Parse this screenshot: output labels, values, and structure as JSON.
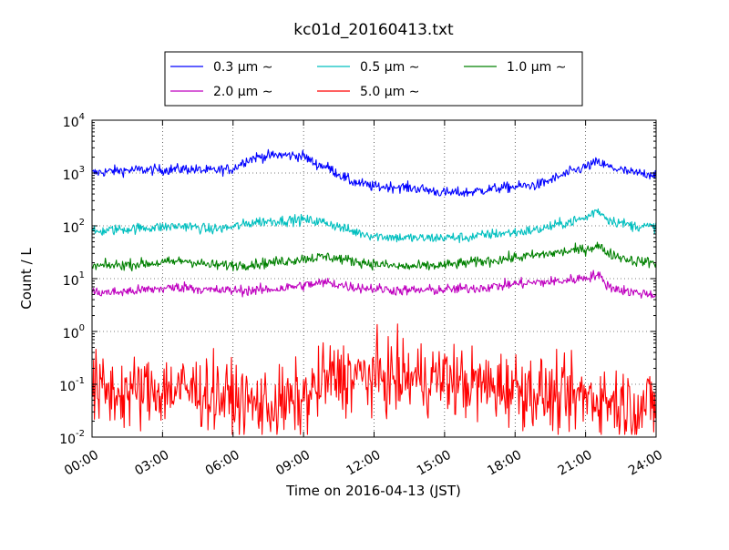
{
  "chart_data": {
    "type": "line",
    "title": "kc01d_20160413.txt",
    "xlabel": "Time on 2016-04-13 (JST)",
    "ylabel": "Count / L",
    "y_scale": "log",
    "ylim": [
      0.01,
      10000
    ],
    "xlim": [
      "00:00",
      "24:00"
    ],
    "grid": true,
    "grid_style": "dotted",
    "legend_position": "top, above plot",
    "legend_columns": 3,
    "x_ticks": [
      "00:00",
      "03:00",
      "06:00",
      "09:00",
      "12:00",
      "15:00",
      "18:00",
      "21:00",
      "24:00"
    ],
    "y_ticks": [
      {
        "value": 0.01,
        "base": "10",
        "exp": "-2"
      },
      {
        "value": 0.1,
        "base": "10",
        "exp": "-1"
      },
      {
        "value": 1,
        "base": "10",
        "exp": "0"
      },
      {
        "value": 10,
        "base": "10",
        "exp": "1"
      },
      {
        "value": 100,
        "base": "10",
        "exp": "2"
      },
      {
        "value": 1000,
        "base": "10",
        "exp": "3"
      },
      {
        "value": 10000,
        "base": "10",
        "exp": "4"
      }
    ],
    "series": [
      {
        "name": "0.3 μm ∼",
        "color": "#0000ff",
        "noise": 0.05,
        "x": [
          "00:00",
          "01:00",
          "02:00",
          "03:00",
          "04:00",
          "05:00",
          "06:00",
          "06:30",
          "07:00",
          "08:00",
          "09:00",
          "09:30",
          "10:00",
          "11:00",
          "12:00",
          "13:00",
          "14:00",
          "15:00",
          "16:00",
          "17:00",
          "18:00",
          "19:00",
          "20:00",
          "20:30",
          "21:00",
          "21:30",
          "22:00",
          "23:00",
          "24:00"
        ],
        "values": [
          1000,
          1100,
          1150,
          1150,
          1200,
          1100,
          1200,
          1700,
          2000,
          2200,
          2100,
          1500,
          1300,
          700,
          550,
          550,
          500,
          420,
          430,
          500,
          550,
          600,
          900,
          1100,
          1300,
          1600,
          1300,
          1000,
          950
        ]
      },
      {
        "name": "0.5 μm ∼",
        "color": "#00bfbf",
        "noise": 0.05,
        "x": [
          "00:00",
          "01:00",
          "02:00",
          "03:00",
          "04:00",
          "05:00",
          "06:00",
          "07:00",
          "08:00",
          "09:00",
          "10:00",
          "11:00",
          "12:00",
          "13:00",
          "14:00",
          "15:00",
          "16:00",
          "17:00",
          "18:00",
          "19:00",
          "20:00",
          "21:00",
          "21:30",
          "22:00",
          "23:00",
          "24:00"
        ],
        "values": [
          75,
          85,
          90,
          95,
          100,
          85,
          95,
          120,
          125,
          130,
          115,
          80,
          65,
          60,
          58,
          60,
          60,
          70,
          75,
          85,
          110,
          140,
          200,
          130,
          100,
          95
        ]
      },
      {
        "name": "1.0 μm ∼",
        "color": "#008000",
        "noise": 0.05,
        "x": [
          "00:00",
          "01:00",
          "02:00",
          "03:00",
          "04:00",
          "05:00",
          "06:00",
          "07:00",
          "08:00",
          "09:00",
          "10:00",
          "11:00",
          "12:00",
          "13:00",
          "14:00",
          "15:00",
          "16:00",
          "17:00",
          "18:00",
          "19:00",
          "20:00",
          "21:00",
          "21:30",
          "22:00",
          "23:00",
          "24:00"
        ],
        "values": [
          17,
          18,
          19,
          20,
          22,
          18,
          18,
          19,
          21,
          24,
          26,
          22,
          19,
          17,
          17,
          18,
          20,
          22,
          25,
          28,
          32,
          36,
          42,
          30,
          22,
          20
        ]
      },
      {
        "name": "2.0 μm ∼",
        "color": "#bf00bf",
        "noise": 0.05,
        "x": [
          "00:00",
          "01:00",
          "02:00",
          "03:00",
          "04:00",
          "05:00",
          "06:00",
          "07:00",
          "08:00",
          "09:00",
          "10:00",
          "11:00",
          "12:00",
          "13:00",
          "14:00",
          "15:00",
          "16:00",
          "17:00",
          "18:00",
          "19:00",
          "20:00",
          "21:00",
          "21:30",
          "22:00",
          "23:00",
          "24:00"
        ],
        "values": [
          5.5,
          5.5,
          6,
          6.5,
          7,
          6,
          6,
          6,
          6.5,
          7.5,
          8.5,
          7,
          6.5,
          6,
          6,
          6.2,
          6.5,
          7,
          8,
          8.5,
          9,
          10.5,
          12,
          7,
          5.5,
          5
        ]
      },
      {
        "name": "5.0 μm ∼",
        "color": "#ff0000",
        "noise": 0.35,
        "x": [
          "00:00",
          "01:00",
          "02:00",
          "03:00",
          "04:00",
          "05:00",
          "06:00",
          "07:00",
          "08:00",
          "09:00",
          "10:00",
          "11:00",
          "12:00",
          "13:00",
          "14:00",
          "15:00",
          "16:00",
          "17:00",
          "18:00",
          "19:00",
          "20:00",
          "21:00",
          "22:00",
          "23:00",
          "24:00"
        ],
        "values": [
          0.08,
          0.07,
          0.07,
          0.08,
          0.08,
          0.07,
          0.05,
          0.04,
          0.04,
          0.05,
          0.13,
          0.14,
          0.14,
          0.13,
          0.13,
          0.13,
          0.1,
          0.09,
          0.09,
          0.07,
          0.05,
          0.06,
          0.05,
          0.04,
          0.04
        ]
      }
    ]
  }
}
